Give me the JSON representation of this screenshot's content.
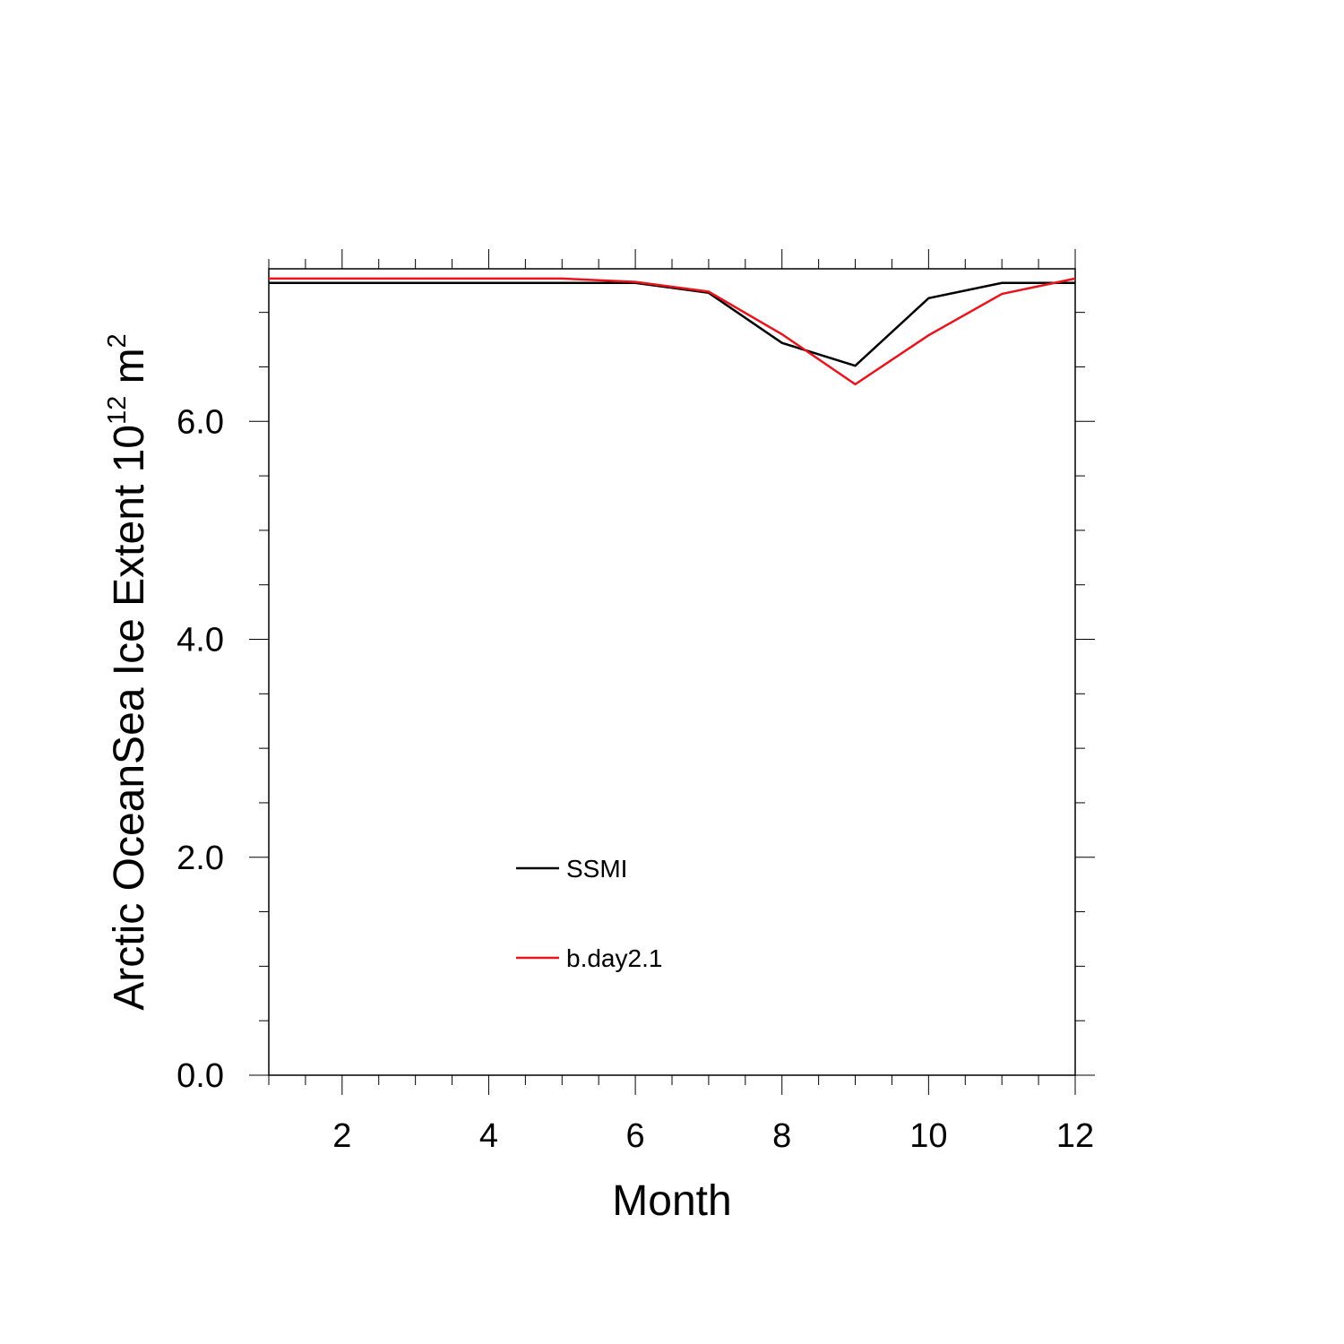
{
  "chart_data": {
    "type": "line",
    "xlabel": "Month",
    "ylabel": {
      "text": "Arctic OceanSea Ice Extent 10",
      "superscript": "12",
      "unit": " m",
      "unit_superscript": "2"
    },
    "xlim": [
      1,
      12
    ],
    "ylim": [
      0,
      7.4
    ],
    "x_ticks": [
      2,
      4,
      6,
      8,
      10,
      12
    ],
    "x_tick_labels": [
      "2",
      "4",
      "6",
      "8",
      "10",
      "12"
    ],
    "y_ticks": [
      0,
      2,
      4,
      6
    ],
    "y_tick_labels": [
      "0.0",
      "2.0",
      "4.0",
      "6.0"
    ],
    "grid": false,
    "legend_position": "lower-left",
    "x": [
      1,
      2,
      3,
      4,
      5,
      6,
      7,
      8,
      9,
      10,
      11,
      12
    ],
    "series": [
      {
        "name": "SSMI",
        "color": "#000000",
        "values": [
          7.27,
          7.27,
          7.27,
          7.27,
          7.27,
          7.27,
          7.18,
          6.72,
          6.51,
          7.13,
          7.27,
          7.27
        ]
      },
      {
        "name": "b.day2.1",
        "color": "#e8141c",
        "values": [
          7.31,
          7.31,
          7.31,
          7.31,
          7.31,
          7.28,
          7.19,
          6.8,
          6.34,
          6.79,
          7.17,
          7.31
        ]
      }
    ]
  }
}
